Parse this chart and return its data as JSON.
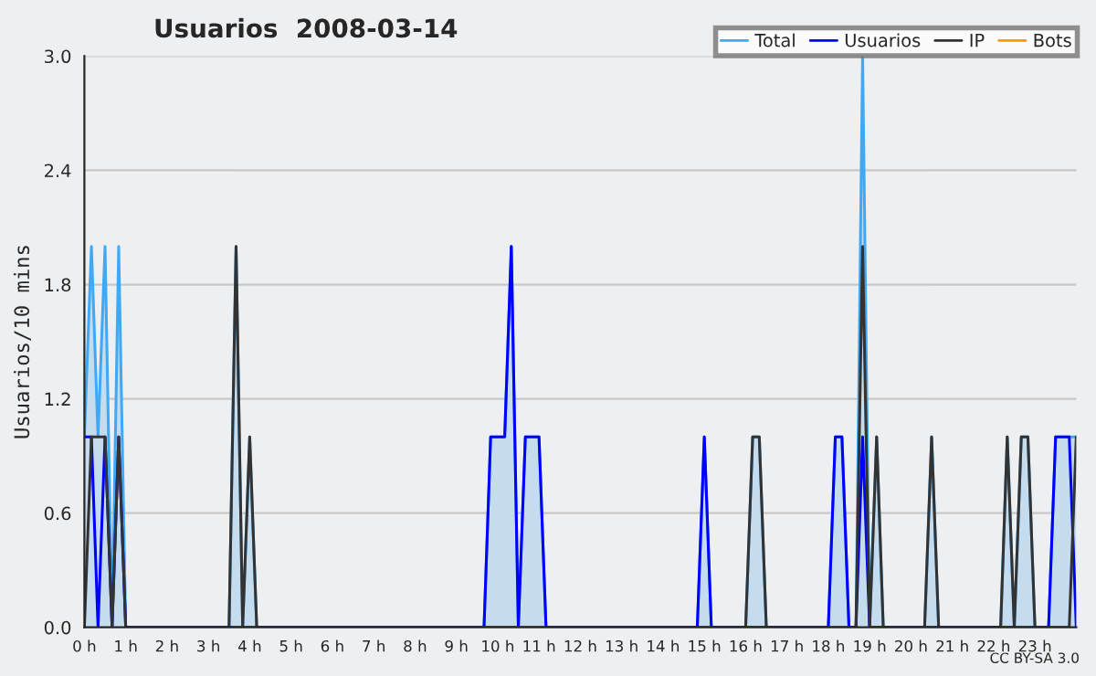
{
  "chart_data": {
    "type": "line",
    "title": "Usuarios  2008-03-14",
    "ylabel": "Usuarios/10 mins",
    "annotations": [
      "CC BY-SA 3.0"
    ],
    "xlim": [
      0,
      24
    ],
    "xticks": [
      {
        "value": 0,
        "label": "0 h"
      },
      {
        "value": 1,
        "label": "1 h"
      },
      {
        "value": 2,
        "label": "2 h"
      },
      {
        "value": 3,
        "label": "3 h"
      },
      {
        "value": 4,
        "label": "4 h"
      },
      {
        "value": 5,
        "label": "5 h"
      },
      {
        "value": 6,
        "label": "6 h"
      },
      {
        "value": 7,
        "label": "7 h"
      },
      {
        "value": 8,
        "label": "8 h"
      },
      {
        "value": 9,
        "label": "9 h"
      },
      {
        "value": 10,
        "label": "10 h"
      },
      {
        "value": 11,
        "label": "11 h"
      },
      {
        "value": 12,
        "label": "12 h"
      },
      {
        "value": 13,
        "label": "13 h"
      },
      {
        "value": 14,
        "label": "14 h"
      },
      {
        "value": 15,
        "label": "15 h"
      },
      {
        "value": 16,
        "label": "16 h"
      },
      {
        "value": 17,
        "label": "17 h"
      },
      {
        "value": 18,
        "label": "18 h"
      },
      {
        "value": 19,
        "label": "19 h"
      },
      {
        "value": 20,
        "label": "20 h"
      },
      {
        "value": 21,
        "label": "21 h"
      },
      {
        "value": 22,
        "label": "22 h"
      },
      {
        "value": 23,
        "label": "23 h"
      }
    ],
    "ylim": [
      0,
      3.0
    ],
    "yticks": [
      {
        "value": 0,
        "label": "0.0"
      },
      {
        "value": 0.6,
        "label": "0.6"
      },
      {
        "value": 1.2,
        "label": "1.2"
      },
      {
        "value": 1.8,
        "label": "1.8"
      },
      {
        "value": 2.4,
        "label": "2.4"
      },
      {
        "value": 3.0,
        "label": "3.0"
      }
    ],
    "grid": "y",
    "legend": "top right",
    "series": [
      {
        "name": "Total",
        "type": "area",
        "color": "#3fa9f5",
        "x": [
          0,
          0.17,
          0.33,
          0.5,
          0.67,
          0.83,
          1,
          3.5,
          3.67,
          3.83,
          4,
          4.17,
          9.67,
          9.83,
          10.17,
          10.33,
          10.5,
          10.67,
          11,
          11.17,
          14.83,
          15,
          15.17,
          16,
          16.17,
          16.33,
          16.5,
          18,
          18.17,
          18.33,
          18.5,
          18.67,
          18.83,
          19,
          19.17,
          19.33,
          20.33,
          20.5,
          20.67,
          22.17,
          22.33,
          22.5,
          22.67,
          22.83,
          23,
          23.33,
          23.5,
          24
        ],
        "values": [
          1,
          2,
          1,
          2,
          0,
          2,
          0,
          0,
          2,
          0,
          1,
          0,
          0,
          1,
          1,
          2,
          0,
          1,
          1,
          0,
          0,
          1,
          0,
          0,
          1,
          1,
          0,
          0,
          1,
          1,
          0,
          0,
          3,
          0,
          1,
          0,
          0,
          1,
          0,
          0,
          1,
          0,
          1,
          1,
          0,
          0,
          1,
          1
        ]
      },
      {
        "name": "Usuarios",
        "color": "#0000ff",
        "x": [
          0,
          0.17,
          0.33,
          0.5,
          0.67,
          0.83,
          1,
          9.67,
          9.83,
          10.17,
          10.33,
          10.5,
          10.67,
          11,
          11.17,
          14.83,
          15,
          15.17,
          18,
          18.17,
          18.33,
          18.5,
          18.67,
          18.83,
          19,
          23.33,
          23.5,
          23.83,
          24
        ],
        "values": [
          1,
          1,
          0,
          1,
          0,
          1,
          0,
          0,
          1,
          1,
          2,
          0,
          1,
          1,
          0,
          0,
          1,
          0,
          0,
          1,
          1,
          0,
          0,
          1,
          0,
          0,
          1,
          1,
          0
        ]
      },
      {
        "name": "IP",
        "color": "#333333",
        "x": [
          0,
          0.17,
          0.5,
          0.67,
          0.83,
          1,
          3.5,
          3.67,
          3.83,
          4,
          4.17,
          16,
          16.17,
          16.33,
          16.5,
          18.67,
          18.83,
          19,
          19.17,
          19.33,
          20.33,
          20.5,
          20.67,
          22.17,
          22.33,
          22.5,
          22.67,
          22.83,
          23,
          23.83,
          24
        ],
        "values": [
          0,
          1,
          1,
          0,
          1,
          0,
          0,
          2,
          0,
          1,
          0,
          0,
          1,
          1,
          0,
          0,
          2,
          0,
          1,
          0,
          0,
          1,
          0,
          0,
          1,
          0,
          1,
          1,
          0,
          0,
          1
        ]
      },
      {
        "name": "Bots",
        "color": "#ff9900"
      }
    ]
  }
}
